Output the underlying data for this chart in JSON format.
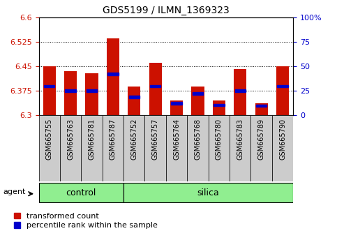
{
  "title": "GDS5199 / ILMN_1369323",
  "samples": [
    "GSM665755",
    "GSM665763",
    "GSM665781",
    "GSM665787",
    "GSM665752",
    "GSM665757",
    "GSM665764",
    "GSM665768",
    "GSM665780",
    "GSM665783",
    "GSM665789",
    "GSM665790"
  ],
  "groups": [
    "control",
    "control",
    "control",
    "control",
    "silica",
    "silica",
    "silica",
    "silica",
    "silica",
    "silica",
    "silica",
    "silica"
  ],
  "red_values": [
    6.45,
    6.435,
    6.428,
    6.535,
    6.388,
    6.46,
    6.345,
    6.388,
    6.345,
    6.44,
    6.335,
    6.45
  ],
  "blue_values": [
    6.388,
    6.375,
    6.375,
    6.425,
    6.355,
    6.388,
    6.335,
    6.365,
    6.33,
    6.375,
    6.328,
    6.388
  ],
  "y_min": 6.3,
  "y_max": 6.6,
  "y_ticks": [
    6.3,
    6.375,
    6.45,
    6.525,
    6.6
  ],
  "y_right_ticks": [
    0,
    25,
    50,
    75,
    100
  ],
  "y_right_labels": [
    "0",
    "25",
    "50",
    "75",
    "100%"
  ],
  "bar_color": "#cc1100",
  "blue_color": "#0000cc",
  "group_color": "#90ee90",
  "tick_label_color": "#cc1100",
  "right_tick_color": "#0000cc",
  "bar_width": 0.6,
  "legend_items": [
    "transformed count",
    "percentile rank within the sample"
  ],
  "blue_sq_half": 0.004
}
